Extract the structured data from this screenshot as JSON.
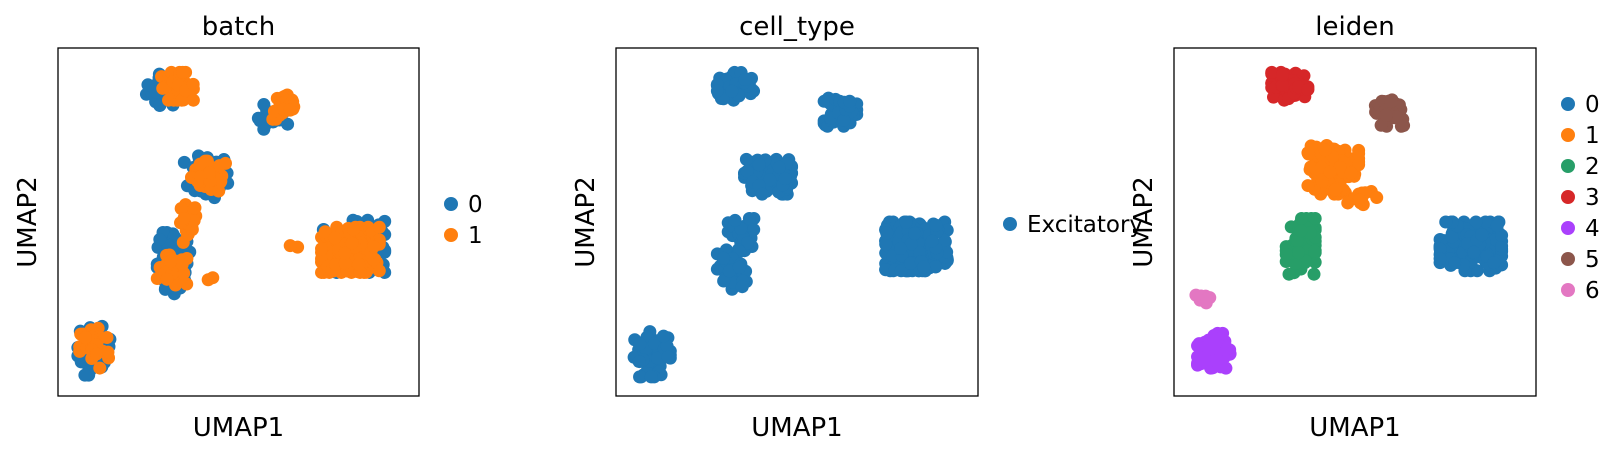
{
  "chart_data": [
    {
      "type": "scatter",
      "title": "batch",
      "xlabel": "UMAP1",
      "ylabel": "UMAP2",
      "grid": false,
      "ticks": false,
      "legend_position": "right",
      "xlim": [
        0,
        10
      ],
      "ylim": [
        0,
        10
      ],
      "series": [
        {
          "name": "0",
          "color": "#1f77b4",
          "clusters": [
            [
              2.9,
              8.8,
              0.45,
              0.45,
              26
            ],
            [
              6.0,
              8.0,
              0.45,
              0.45,
              18
            ],
            [
              4.1,
              6.3,
              0.6,
              0.6,
              42
            ],
            [
              3.2,
              4.2,
              0.45,
              0.5,
              32
            ],
            [
              3.2,
              3.4,
              0.45,
              0.5,
              32
            ],
            [
              8.2,
              4.3,
              0.85,
              0.75,
              90
            ],
            [
              1.0,
              1.3,
              0.45,
              0.7,
              30
            ]
          ]
        },
        {
          "name": "1",
          "color": "#ff7f0e",
          "clusters": [
            [
              3.3,
              8.9,
              0.45,
              0.4,
              46
            ],
            [
              6.3,
              8.3,
              0.35,
              0.35,
              28
            ],
            [
              4.2,
              6.3,
              0.5,
              0.45,
              46
            ],
            [
              3.6,
              4.9,
              0.25,
              0.6,
              24
            ],
            [
              3.2,
              3.6,
              0.45,
              0.45,
              22
            ],
            [
              8.1,
              4.2,
              0.8,
              0.65,
              150
            ],
            [
              1.0,
              1.4,
              0.4,
              0.6,
              36
            ],
            [
              4.1,
              3.4,
              0.2,
              0.2,
              2
            ],
            [
              6.6,
              4.3,
              0.3,
              0.3,
              2
            ]
          ]
        }
      ],
      "legend": [
        "0",
        "1"
      ]
    },
    {
      "type": "scatter",
      "title": "cell_type",
      "xlabel": "UMAP1",
      "ylabel": "UMAP2",
      "grid": false,
      "ticks": false,
      "legend_position": "right",
      "xlim": [
        0,
        10
      ],
      "ylim": [
        0,
        10
      ],
      "series": [
        {
          "name": "Excitatory",
          "color": "#1f77b4",
          "clusters": [
            [
              3.3,
              8.9,
              0.5,
              0.4,
              72
            ],
            [
              6.2,
              8.2,
              0.45,
              0.45,
              44
            ],
            [
              4.2,
              6.3,
              0.65,
              0.5,
              90
            ],
            [
              3.5,
              4.6,
              0.4,
              0.5,
              36
            ],
            [
              3.2,
              3.6,
              0.4,
              0.6,
              48
            ],
            [
              8.3,
              4.3,
              0.85,
              0.7,
              200
            ],
            [
              1.0,
              1.2,
              0.5,
              0.65,
              58
            ]
          ]
        }
      ],
      "legend": [
        "Excitatory"
      ]
    },
    {
      "type": "scatter",
      "title": "leiden",
      "xlabel": "UMAP1",
      "ylabel": "UMAP2",
      "grid": false,
      "ticks": false,
      "legend_position": "right",
      "xlim": [
        0,
        10
      ],
      "ylim": [
        0,
        10
      ],
      "series": [
        {
          "name": "0",
          "color": "#1f77b4",
          "clusters": [
            [
              8.2,
              4.3,
              0.85,
              0.7,
              200
            ]
          ]
        },
        {
          "name": "1",
          "color": "#ff7f0e",
          "clusters": [
            [
              4.4,
              6.5,
              0.7,
              0.7,
              96
            ],
            [
              5.2,
              5.8,
              0.4,
              0.3,
              10
            ]
          ]
        },
        {
          "name": "2",
          "color": "#279e68",
          "clusters": [
            [
              3.5,
              4.3,
              0.4,
              0.8,
              84
            ]
          ]
        },
        {
          "name": "3",
          "color": "#d62728",
          "clusters": [
            [
              3.2,
              8.9,
              0.5,
              0.4,
              64
            ]
          ]
        },
        {
          "name": "4",
          "color": "#aa40fc",
          "clusters": [
            [
              1.1,
              1.3,
              0.45,
              0.5,
              60
            ]
          ]
        },
        {
          "name": "5",
          "color": "#8c564b",
          "clusters": [
            [
              6.0,
              8.2,
              0.45,
              0.45,
              46
            ]
          ]
        },
        {
          "name": "6",
          "color": "#e377c2",
          "clusters": [
            [
              0.8,
              2.8,
              0.2,
              0.2,
              8
            ]
          ]
        }
      ],
      "legend": [
        "0",
        "1",
        "2",
        "3",
        "4",
        "5",
        "6"
      ]
    }
  ]
}
